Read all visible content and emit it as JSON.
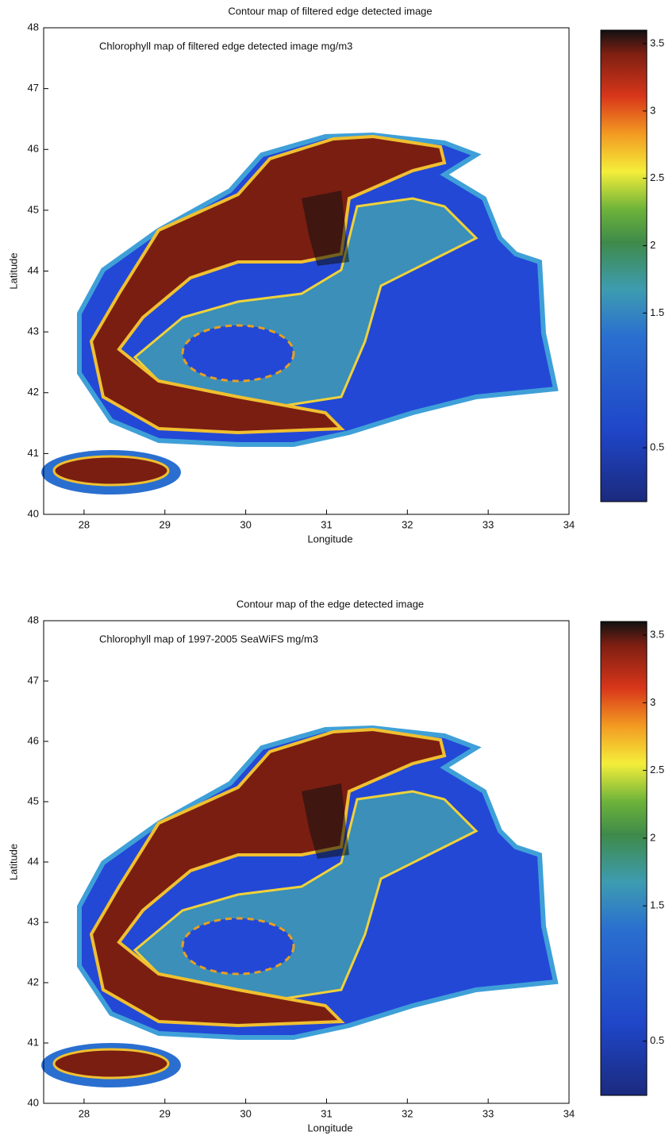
{
  "chart_data": [
    {
      "type": "heatmap",
      "title": "Contour map of filtered edge detected image",
      "annotation": "Chlorophyll map of filtered edge detected image mg/m3",
      "xlabel": "Longitude",
      "ylabel": "Latitude",
      "xlim": [
        27.5,
        34
      ],
      "ylim": [
        40,
        48
      ],
      "xticks": [
        28,
        29,
        30,
        31,
        32,
        33,
        34
      ],
      "yticks": [
        40,
        41,
        42,
        43,
        44,
        45,
        46,
        47,
        48
      ],
      "colorbar": {
        "lim": [
          0.1,
          3.6
        ],
        "ticks": [
          0.5,
          1.5,
          2,
          2.5,
          3,
          3.5
        ]
      }
    },
    {
      "type": "heatmap",
      "title": "Contour map of the edge detected image",
      "annotation": "Chlorophyll map of 1997-2005 SeaWiFS mg/m3",
      "xlabel": "Longitude",
      "ylabel": "Latitude",
      "xlim": [
        27.5,
        34
      ],
      "ylim": [
        40,
        48
      ],
      "xticks": [
        28,
        29,
        30,
        31,
        32,
        33,
        34
      ],
      "yticks": [
        40,
        41,
        42,
        43,
        44,
        45,
        46,
        47,
        48
      ],
      "colorbar": {
        "lim": [
          0.1,
          3.6
        ],
        "ticks": [
          0.5,
          1.5,
          2,
          2.5,
          3,
          3.5
        ]
      }
    }
  ]
}
